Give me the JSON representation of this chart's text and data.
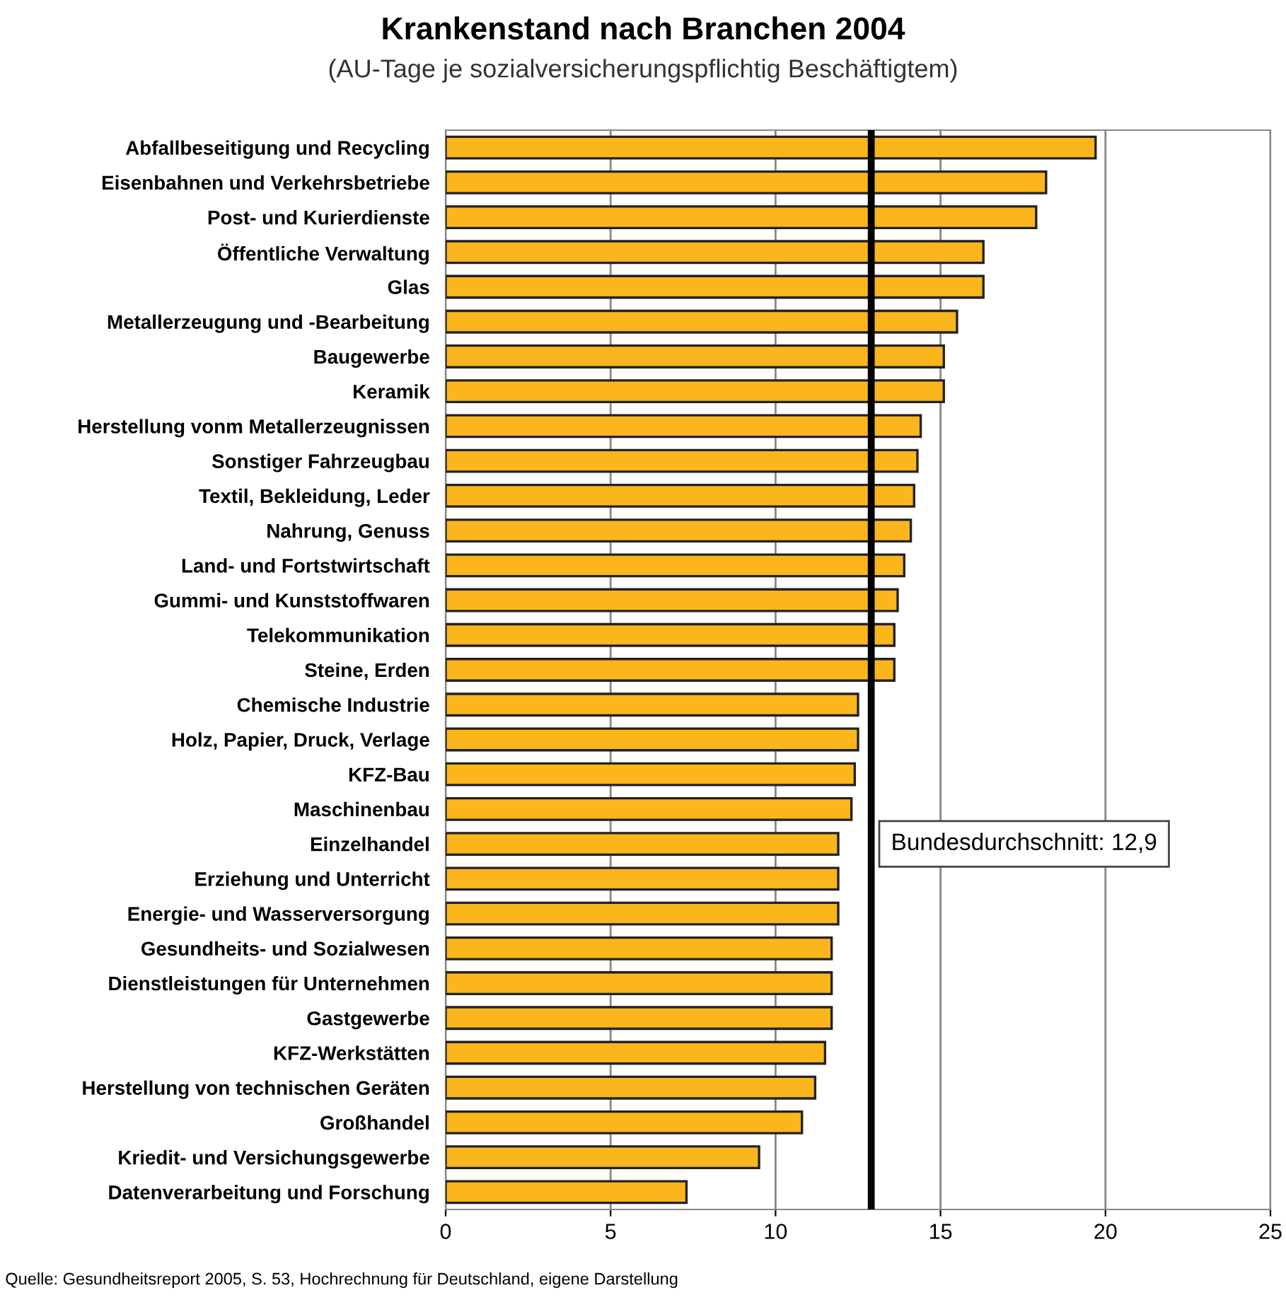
{
  "chart_data": {
    "type": "bar",
    "orientation": "horizontal",
    "title": "Krankenstand nach Branchen 2004",
    "subtitle": "(AU-Tage je sozialversicherungspflichtig Beschäftigtem)",
    "categories": [
      "Abfallbeseitigung und Recycling",
      "Eisenbahnen und Verkehrsbetriebe",
      "Post- und Kurierdienste",
      "Öffentliche Verwaltung",
      "Glas",
      "Metallerzeugung und -Bearbeitung",
      "Baugewerbe",
      "Keramik",
      "Herstellung vonm Metallerzeugnissen",
      "Sonstiger Fahrzeugbau",
      "Textil, Bekleidung, Leder",
      "Nahrung, Genuss",
      "Land- und Fortstwirtschaft",
      "Gummi- und Kunststoffwaren",
      "Telekommunikation",
      "Steine, Erden",
      "Chemische Industrie",
      "Holz, Papier, Druck, Verlage",
      "KFZ-Bau",
      "Maschinenbau",
      "Einzelhandel",
      "Erziehung und Unterricht",
      "Energie- und Wasserversorgung",
      "Gesundheits- und Sozialwesen",
      "Dienstleistungen für Unternehmen",
      "Gastgewerbe",
      "KFZ-Werkstätten",
      "Herstellung von technischen Geräten",
      "Großhandel",
      "Kriedit- und Versichungsgewerbe",
      "Datenverarbeitung und Forschung"
    ],
    "values": [
      19.7,
      18.2,
      17.9,
      16.3,
      16.3,
      15.5,
      15.1,
      15.1,
      14.4,
      14.3,
      14.2,
      14.1,
      13.9,
      13.7,
      13.6,
      13.6,
      12.5,
      12.5,
      12.4,
      12.3,
      11.9,
      11.9,
      11.9,
      11.7,
      11.7,
      11.7,
      11.5,
      11.2,
      10.8,
      9.5,
      7.3
    ],
    "color": "#fbb51d",
    "xlim": [
      0,
      25
    ],
    "xticks": [
      0,
      5,
      10,
      15,
      20,
      25
    ],
    "grid": "x",
    "ref_lines": [
      {
        "axis": "x",
        "value": 12.9,
        "label": "Bundesdurchschnitt: 12,9",
        "color": "#000000"
      }
    ],
    "annotations": [
      "Quelle: Gesundheitsreport 2005, S. 53, Hochrechnung für Deutschland, eigene Darstellung"
    ]
  }
}
